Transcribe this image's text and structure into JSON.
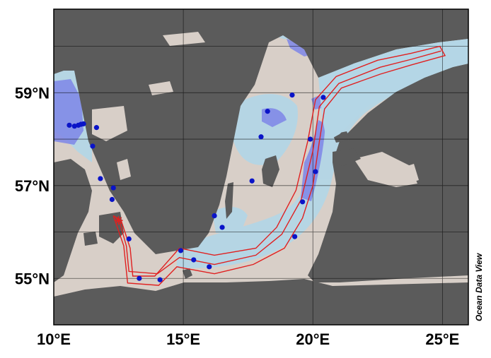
{
  "map": {
    "credit": "Ocean Data View",
    "x_ticks": [
      {
        "lon": 10,
        "label": "10°E"
      },
      {
        "lon": 15,
        "label": "15°E"
      },
      {
        "lon": 20,
        "label": "20°E"
      },
      {
        "lon": 25,
        "label": "25°E"
      }
    ],
    "y_ticks": [
      {
        "lat": 59,
        "label": "59°N"
      },
      {
        "lat": 57,
        "label": "57°N"
      },
      {
        "lat": 55,
        "label": "55°N"
      }
    ],
    "extent": {
      "lon": [
        10,
        26
      ],
      "lat": [
        54,
        60.8
      ]
    },
    "grid_lons": [
      10,
      15,
      20,
      25
    ],
    "grid_lats": [
      54,
      55,
      56,
      57,
      58,
      59,
      60
    ],
    "colors": {
      "land": "#5b5b5b",
      "sea_shallow": "#d8cfc8",
      "sea_mid": "#b4d6e6",
      "sea_deep": "#7e86e8",
      "stations": "#0a14c8",
      "track": "#e02020",
      "grid": "#000000"
    },
    "stations": [
      {
        "lon": 10.6,
        "lat": 58.3
      },
      {
        "lon": 10.8,
        "lat": 58.28
      },
      {
        "lon": 10.95,
        "lat": 58.3
      },
      {
        "lon": 11.05,
        "lat": 58.32
      },
      {
        "lon": 11.15,
        "lat": 58.33
      },
      {
        "lon": 11.65,
        "lat": 58.25
      },
      {
        "lon": 11.5,
        "lat": 57.85
      },
      {
        "lon": 11.8,
        "lat": 57.15
      },
      {
        "lon": 12.3,
        "lat": 56.95
      },
      {
        "lon": 12.25,
        "lat": 56.7
      },
      {
        "lon": 12.9,
        "lat": 55.85
      },
      {
        "lon": 13.3,
        "lat": 55.0
      },
      {
        "lon": 14.1,
        "lat": 54.97
      },
      {
        "lon": 14.9,
        "lat": 55.6
      },
      {
        "lon": 15.4,
        "lat": 55.4
      },
      {
        "lon": 16.0,
        "lat": 55.25
      },
      {
        "lon": 16.2,
        "lat": 56.35
      },
      {
        "lon": 16.5,
        "lat": 56.1
      },
      {
        "lon": 17.65,
        "lat": 57.1
      },
      {
        "lon": 18.0,
        "lat": 58.05
      },
      {
        "lon": 18.25,
        "lat": 58.6
      },
      {
        "lon": 19.2,
        "lat": 58.95
      },
      {
        "lon": 19.3,
        "lat": 55.9
      },
      {
        "lon": 19.6,
        "lat": 56.65
      },
      {
        "lon": 19.9,
        "lat": 58.0
      },
      {
        "lon": 20.1,
        "lat": 57.3
      },
      {
        "lon": 20.4,
        "lat": 58.9
      }
    ],
    "star": {
      "lon": 12.5,
      "lat": 56.25
    },
    "track_outer": [
      [
        12.3,
        56.35
      ],
      [
        12.6,
        56.25
      ],
      [
        12.95,
        55.65
      ],
      [
        13.05,
        55.05
      ],
      [
        13.9,
        55.05
      ],
      [
        14.85,
        55.65
      ],
      [
        16.2,
        55.5
      ],
      [
        17.8,
        55.65
      ],
      [
        18.6,
        56.1
      ],
      [
        19.35,
        56.9
      ],
      [
        19.8,
        57.95
      ],
      [
        20.1,
        58.85
      ],
      [
        20.9,
        59.35
      ],
      [
        22.5,
        59.7
      ],
      [
        23.8,
        59.85
      ],
      [
        24.9,
        60.0
      ],
      [
        25.1,
        59.8
      ],
      [
        23.8,
        59.6
      ],
      [
        22.6,
        59.4
      ],
      [
        21.1,
        59.1
      ],
      [
        20.45,
        58.65
      ],
      [
        20.25,
        57.95
      ],
      [
        20.0,
        57.0
      ],
      [
        19.6,
        56.3
      ],
      [
        18.9,
        55.65
      ],
      [
        17.7,
        55.3
      ],
      [
        16.2,
        55.1
      ],
      [
        14.75,
        55.25
      ],
      [
        14.05,
        54.85
      ],
      [
        12.85,
        54.9
      ],
      [
        12.7,
        55.7
      ],
      [
        12.3,
        56.35
      ]
    ],
    "track_inner": [
      [
        12.55,
        56.2
      ],
      [
        12.8,
        55.7
      ],
      [
        12.9,
        55.15
      ],
      [
        14.0,
        55.1
      ],
      [
        14.85,
        55.45
      ],
      [
        16.2,
        55.3
      ],
      [
        17.8,
        55.5
      ],
      [
        18.8,
        55.95
      ],
      [
        19.55,
        56.7
      ],
      [
        20.0,
        57.75
      ],
      [
        20.25,
        58.7
      ],
      [
        21.0,
        59.2
      ],
      [
        22.6,
        59.55
      ],
      [
        23.8,
        59.72
      ],
      [
        24.95,
        59.9
      ]
    ]
  }
}
